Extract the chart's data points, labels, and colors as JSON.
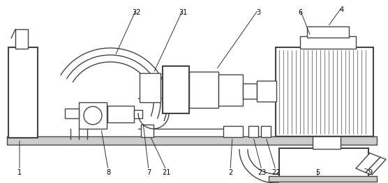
{
  "fig_w": 5.56,
  "fig_h": 2.63,
  "dpi": 100,
  "lc": "#444444",
  "lw": 1.0,
  "lw_thick": 1.5
}
